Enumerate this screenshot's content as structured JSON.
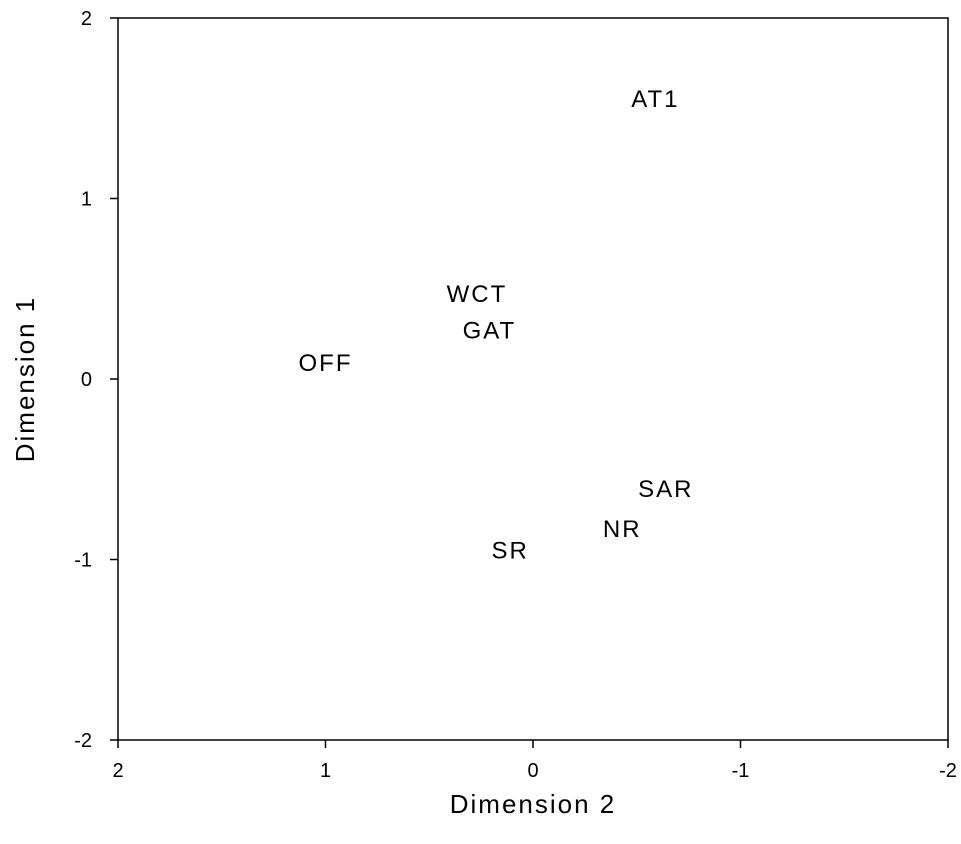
{
  "chart_data": {
    "type": "scatter",
    "xlabel": "Dimension 2",
    "ylabel": "Dimension 1",
    "xlim": [
      2,
      -2
    ],
    "ylim": [
      -2,
      2
    ],
    "xticks": [
      2,
      1,
      0,
      -1,
      -2
    ],
    "yticks": [
      2,
      1,
      0,
      -1,
      -2
    ],
    "x_axis_reversed": true,
    "grid": false,
    "marker": "text-label",
    "points": [
      {
        "label": "AT1",
        "x": -0.59,
        "y": 1.55
      },
      {
        "label": "WCT",
        "x": 0.27,
        "y": 0.47
      },
      {
        "label": "GAT",
        "x": 0.21,
        "y": 0.27
      },
      {
        "label": "OFF",
        "x": 1.0,
        "y": 0.09
      },
      {
        "label": "SAR",
        "x": -0.64,
        "y": -0.61
      },
      {
        "label": "NR",
        "x": -0.43,
        "y": -0.83
      },
      {
        "label": "SR",
        "x": 0.11,
        "y": -0.95
      }
    ]
  }
}
